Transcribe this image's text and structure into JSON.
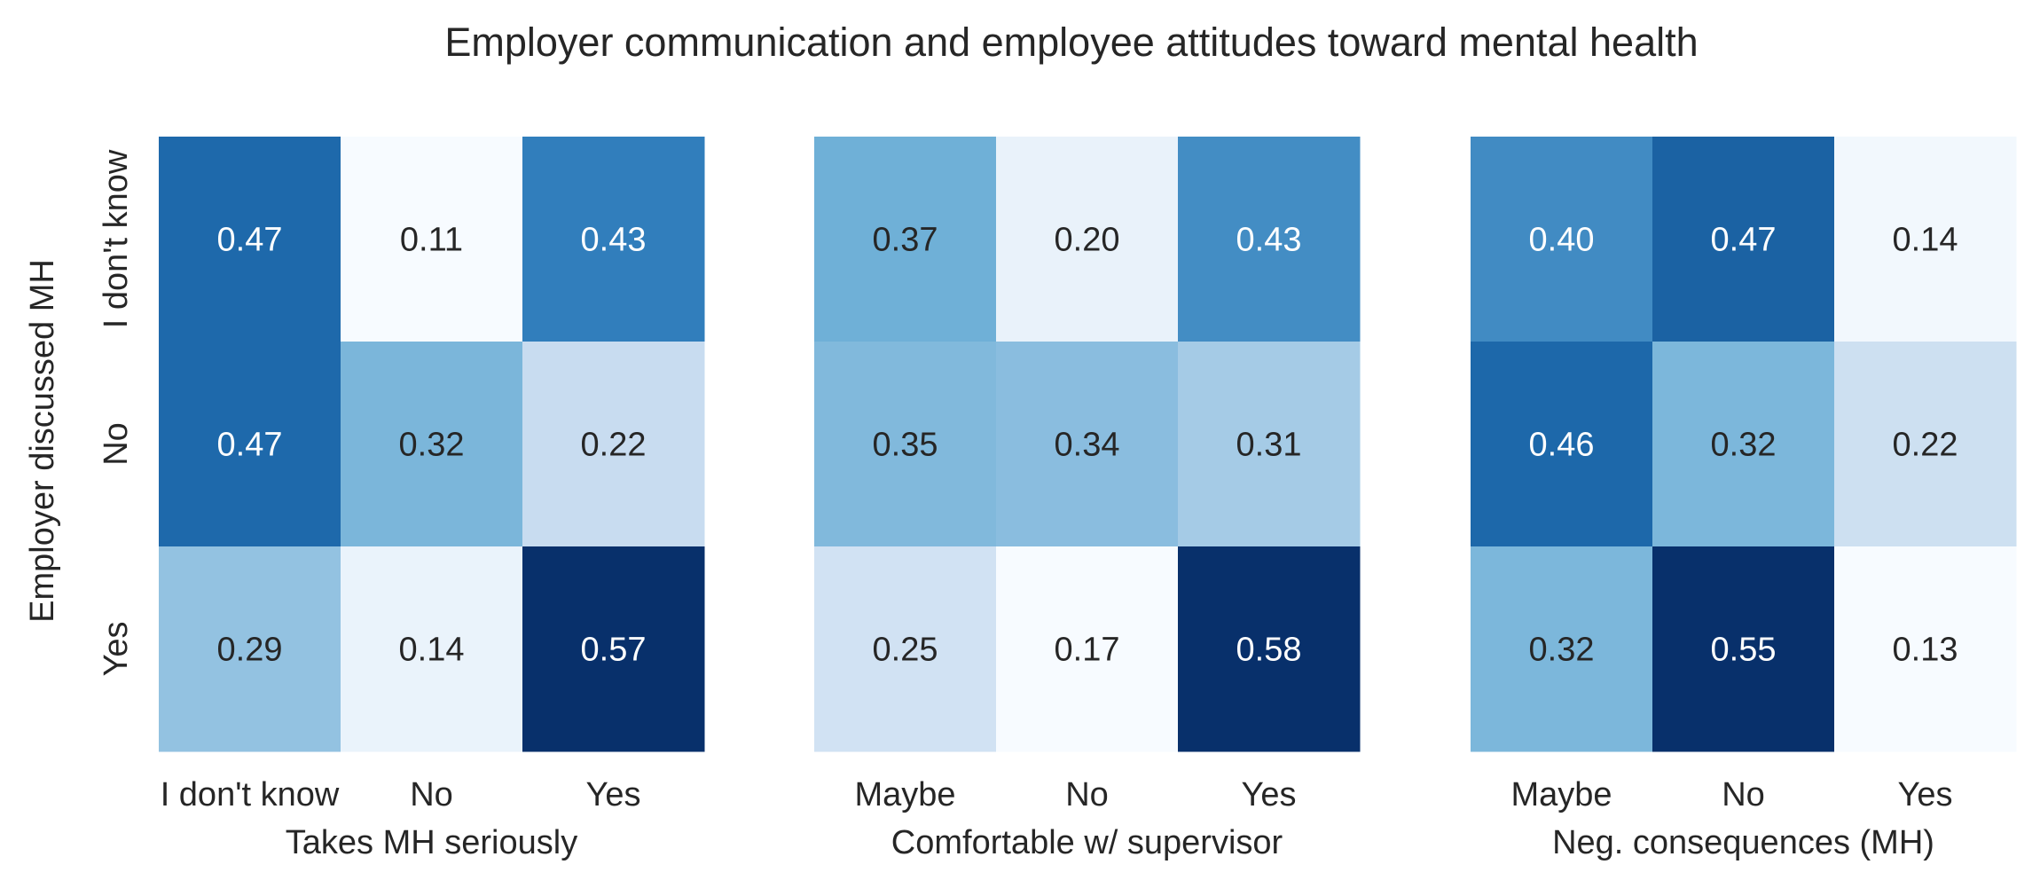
{
  "title": "Employer communication and employee attitudes toward mental health",
  "ylabel": "Employer discussed MH",
  "rows": [
    "I don't know",
    "No",
    "Yes"
  ],
  "palette": {
    "low": "#f7fbff",
    "mid1": "#c6dbef",
    "mid2": "#6baed6",
    "mid3": "#2171b5",
    "high": "#08306b",
    "text_dark": "#262626",
    "text_light": "#ffffff"
  },
  "chart_data": [
    {
      "type": "heatmap",
      "xlabel": "Takes MH seriously",
      "columns": [
        "I don't know",
        "No",
        "Yes"
      ],
      "values": [
        [
          0.47,
          0.11,
          0.43
        ],
        [
          0.47,
          0.32,
          0.22
        ],
        [
          0.29,
          0.14,
          0.57
        ]
      ]
    },
    {
      "type": "heatmap",
      "xlabel": "Comfortable w/ supervisor",
      "columns": [
        "Maybe",
        "No",
        "Yes"
      ],
      "values": [
        [
          0.37,
          0.2,
          0.43
        ],
        [
          0.35,
          0.34,
          0.31
        ],
        [
          0.25,
          0.17,
          0.58
        ]
      ]
    },
    {
      "type": "heatmap",
      "xlabel": "Neg. consequences (MH)",
      "columns": [
        "Maybe",
        "No",
        "Yes"
      ],
      "values": [
        [
          0.4,
          0.47,
          0.14
        ],
        [
          0.46,
          0.32,
          0.22
        ],
        [
          0.32,
          0.55,
          0.13
        ]
      ]
    }
  ]
}
